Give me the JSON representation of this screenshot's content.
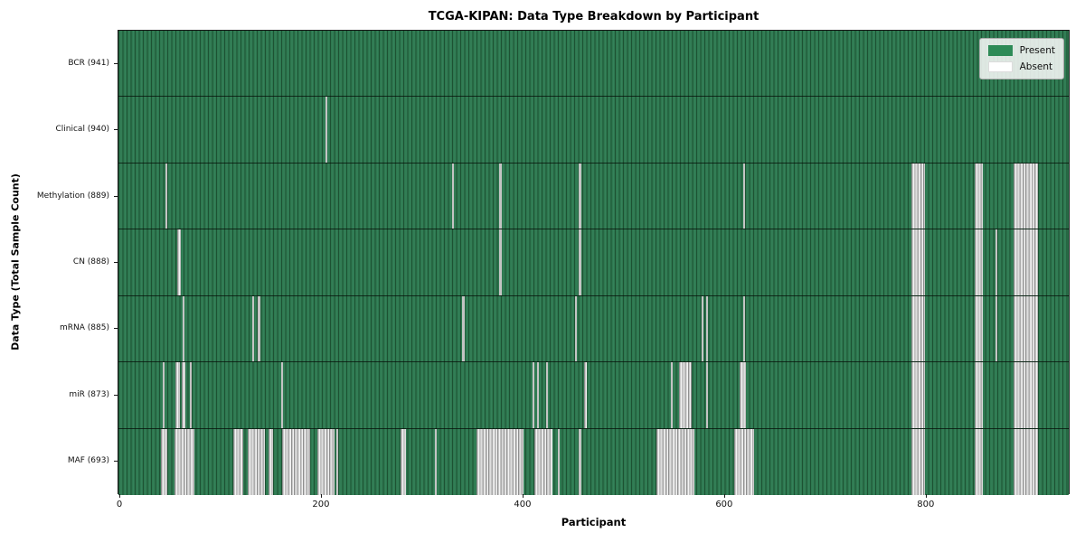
{
  "title": "TCGA-KIPAN: Data Type Breakdown by Participant",
  "xlabel": "Participant",
  "ylabel": "Data Type (Total Sample Count)",
  "legend": {
    "present_label": "Present",
    "absent_label": "Absent",
    "position": "upper right"
  },
  "colors": {
    "present": "#2e8b57",
    "present_edge": "#1d5233",
    "absent": "#ffffff",
    "absent_edge": "#8f8f8f",
    "background": "#ffffff"
  },
  "chart_data": {
    "type": "heatmap",
    "xlabel": "Participant",
    "ylabel": "Data Type (Total Sample Count)",
    "x_ticks": [
      0,
      200,
      400,
      600,
      800
    ],
    "xlim": [
      0,
      941
    ],
    "n_participants": 941,
    "grid": false,
    "legend_position": "upper right",
    "rows": [
      {
        "name": "BCR",
        "label": "BCR (941)",
        "count": 941,
        "absent_segments": []
      },
      {
        "name": "Clinical",
        "label": "Clinical (940)",
        "count": 940,
        "absent_segments": [
          [
            204,
            206
          ]
        ]
      },
      {
        "name": "Methylation",
        "label": "Methylation (889)",
        "count": 889,
        "absent_segments": [
          [
            45,
            47
          ],
          [
            330,
            332
          ],
          [
            377,
            379
          ],
          [
            456,
            458
          ],
          [
            619,
            621
          ],
          [
            786,
            800
          ],
          [
            849,
            857
          ],
          [
            888,
            912
          ]
        ]
      },
      {
        "name": "CN",
        "label": "CN (888)",
        "count": 888,
        "absent_segments": [
          [
            57,
            60
          ],
          [
            377,
            379
          ],
          [
            456,
            458
          ],
          [
            786,
            800
          ],
          [
            849,
            857
          ],
          [
            870,
            872
          ],
          [
            888,
            912
          ]
        ]
      },
      {
        "name": "mRNA",
        "label": "mRNA (885)",
        "count": 885,
        "absent_segments": [
          [
            62,
            64
          ],
          [
            131,
            133
          ],
          [
            137,
            139
          ],
          [
            340,
            342
          ],
          [
            452,
            454
          ],
          [
            578,
            580
          ],
          [
            582,
            584
          ],
          [
            619,
            621
          ],
          [
            786,
            800
          ],
          [
            849,
            857
          ],
          [
            870,
            872
          ],
          [
            888,
            912
          ]
        ]
      },
      {
        "name": "miR",
        "label": "miR (873)",
        "count": 873,
        "absent_segments": [
          [
            42,
            44
          ],
          [
            55,
            59
          ],
          [
            61,
            65
          ],
          [
            69,
            71
          ],
          [
            160,
            162
          ],
          [
            410,
            412
          ],
          [
            414,
            416
          ],
          [
            423,
            425
          ],
          [
            461,
            464
          ],
          [
            547,
            549
          ],
          [
            555,
            568
          ],
          [
            582,
            584
          ],
          [
            616,
            622
          ],
          [
            786,
            800
          ],
          [
            849,
            857
          ],
          [
            888,
            912
          ]
        ]
      },
      {
        "name": "MAF",
        "label": "MAF (693)",
        "count": 693,
        "absent_segments": [
          [
            40,
            47
          ],
          [
            54,
            74
          ],
          [
            112,
            122
          ],
          [
            127,
            144
          ],
          [
            147,
            152
          ],
          [
            161,
            189
          ],
          [
            196,
            213
          ],
          [
            215,
            217
          ],
          [
            279,
            284
          ],
          [
            313,
            315
          ],
          [
            354,
            401
          ],
          [
            412,
            430
          ],
          [
            435,
            437
          ],
          [
            456,
            458
          ],
          [
            533,
            571
          ],
          [
            610,
            630
          ],
          [
            786,
            800
          ],
          [
            849,
            857
          ],
          [
            888,
            912
          ]
        ]
      }
    ]
  }
}
